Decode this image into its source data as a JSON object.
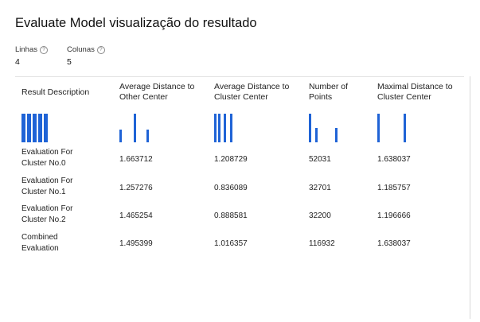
{
  "header": {
    "title": "Evaluate Model visualização do resultado",
    "rows_label": "Linhas",
    "rows_value": "4",
    "columns_label": "Colunas",
    "columns_value": "5",
    "help_glyph": "?"
  },
  "table": {
    "columns": [
      "Result Description",
      "Average Distance to Other Center",
      "Average Distance to Cluster Center",
      "Number of Points",
      "Maximal Distance to Cluster Center"
    ],
    "rows": [
      [
        "Evaluation For Cluster No.0",
        "1.663712",
        "1.208729",
        "52031",
        "1.638037"
      ],
      [
        "Evaluation For Cluster No.1",
        "1.257276",
        "0.836089",
        "32701",
        "1.185757"
      ],
      [
        "Evaluation For Cluster No.2",
        "1.465254",
        "0.888581",
        "32200",
        "1.196666"
      ],
      [
        "Combined Evaluation",
        "1.495399",
        "1.016357",
        "116932",
        "1.638037"
      ]
    ],
    "histogram_color": "#1f63d6",
    "histograms": [
      [
        1,
        1,
        1,
        1,
        1
      ],
      [
        0.45,
        1,
        0.45
      ],
      [
        1,
        1,
        1,
        1
      ],
      [
        1,
        0.5,
        0.5
      ],
      [
        1,
        1
      ]
    ]
  }
}
